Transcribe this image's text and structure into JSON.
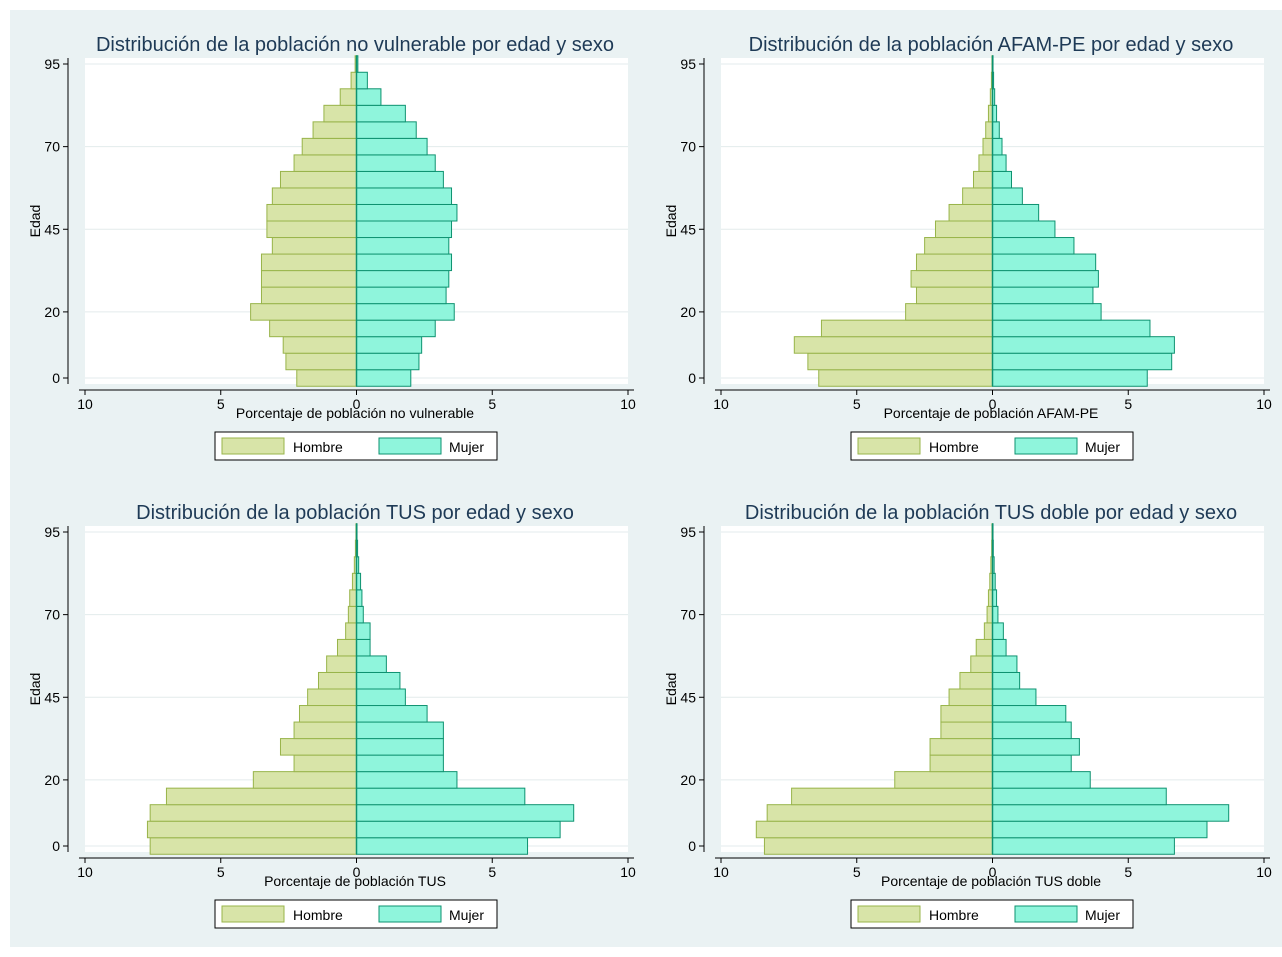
{
  "colors": {
    "hombre_fill": "#d8e4a8",
    "hombre_edge": "#98b44a",
    "mujer_fill": "#8ff5dc",
    "mujer_edge": "#0e9270",
    "background": "#eaf2f3",
    "title": "#1e3a56"
  },
  "legend": {
    "hombre": "Hombre",
    "mujer": "Mujer"
  },
  "chart_data": [
    {
      "type": "bar",
      "orientation": "horizontal-population-pyramid",
      "title": "Distribución de la población no vulnerable por edad y sexo",
      "xlabel": "Porcentaje de población no vulnerable",
      "ylabel": "Edad",
      "xticks": [
        "10",
        "5",
        "0",
        "5",
        "10"
      ],
      "yticks": [
        "0",
        "20",
        "45",
        "70",
        "95"
      ],
      "xlim": [
        -10,
        10
      ],
      "ylim": [
        0,
        95
      ],
      "age_groups": [
        0,
        5,
        10,
        15,
        20,
        25,
        30,
        35,
        40,
        45,
        50,
        55,
        60,
        65,
        70,
        75,
        80,
        85,
        90,
        95
      ],
      "series": [
        {
          "name": "Hombre",
          "values": [
            2.2,
            2.6,
            2.7,
            3.2,
            3.9,
            3.5,
            3.5,
            3.5,
            3.1,
            3.3,
            3.3,
            3.1,
            2.8,
            2.3,
            2.0,
            1.6,
            1.2,
            0.6,
            0.2,
            0.05
          ]
        },
        {
          "name": "Mujer",
          "values": [
            2.0,
            2.3,
            2.4,
            2.9,
            3.6,
            3.3,
            3.4,
            3.5,
            3.4,
            3.5,
            3.7,
            3.5,
            3.2,
            2.9,
            2.6,
            2.2,
            1.8,
            0.9,
            0.4,
            0.05
          ]
        }
      ]
    },
    {
      "type": "bar",
      "orientation": "horizontal-population-pyramid",
      "title": "Distribución de la población AFAM-PE por edad y sexo",
      "xlabel": "Porcentaje de población AFAM-PE",
      "ylabel": "Edad",
      "xticks": [
        "10",
        "5",
        "0",
        "5",
        "10"
      ],
      "yticks": [
        "0",
        "20",
        "45",
        "70",
        "95"
      ],
      "xlim": [
        -10,
        10
      ],
      "ylim": [
        0,
        95
      ],
      "age_groups": [
        0,
        5,
        10,
        15,
        20,
        25,
        30,
        35,
        40,
        45,
        50,
        55,
        60,
        65,
        70,
        75,
        80,
        85,
        90,
        95
      ],
      "series": [
        {
          "name": "Hombre",
          "values": [
            6.4,
            6.8,
            7.3,
            6.3,
            3.2,
            2.8,
            3.0,
            2.8,
            2.5,
            2.1,
            1.6,
            1.1,
            0.7,
            0.5,
            0.35,
            0.25,
            0.15,
            0.08,
            0.04,
            0.02
          ]
        },
        {
          "name": "Mujer",
          "values": [
            5.7,
            6.6,
            6.7,
            5.8,
            4.0,
            3.7,
            3.9,
            3.8,
            3.0,
            2.3,
            1.7,
            1.1,
            0.7,
            0.5,
            0.35,
            0.25,
            0.15,
            0.08,
            0.04,
            0.02
          ]
        }
      ]
    },
    {
      "type": "bar",
      "orientation": "horizontal-population-pyramid",
      "title": "Distribución de la población TUS por edad y sexo",
      "xlabel": "Porcentaje de población TUS",
      "ylabel": "Edad",
      "xticks": [
        "10",
        "5",
        "0",
        "5",
        "10"
      ],
      "yticks": [
        "0",
        "20",
        "45",
        "70",
        "95"
      ],
      "xlim": [
        -10,
        10
      ],
      "ylim": [
        0,
        95
      ],
      "age_groups": [
        0,
        5,
        10,
        15,
        20,
        25,
        30,
        35,
        40,
        45,
        50,
        55,
        60,
        65,
        70,
        75,
        80,
        85,
        90,
        95
      ],
      "series": [
        {
          "name": "Hombre",
          "values": [
            7.6,
            7.7,
            7.6,
            7.0,
            3.8,
            2.3,
            2.8,
            2.3,
            2.1,
            1.8,
            1.4,
            1.1,
            0.7,
            0.4,
            0.3,
            0.25,
            0.15,
            0.08,
            0.04,
            0.02
          ]
        },
        {
          "name": "Mujer",
          "values": [
            6.3,
            7.5,
            8.0,
            6.2,
            3.7,
            3.2,
            3.2,
            3.2,
            2.6,
            1.8,
            1.6,
            1.1,
            0.5,
            0.5,
            0.25,
            0.2,
            0.15,
            0.08,
            0.04,
            0.02
          ]
        }
      ]
    },
    {
      "type": "bar",
      "orientation": "horizontal-population-pyramid",
      "title": "Distribución de la población TUS doble por edad y sexo",
      "xlabel": "Porcentaje de población TUS doble",
      "ylabel": "Edad",
      "xticks": [
        "10",
        "5",
        "0",
        "5",
        "10"
      ],
      "yticks": [
        "0",
        "20",
        "45",
        "70",
        "95"
      ],
      "xlim": [
        -10,
        10
      ],
      "ylim": [
        0,
        95
      ],
      "age_groups": [
        0,
        5,
        10,
        15,
        20,
        25,
        30,
        35,
        40,
        45,
        50,
        55,
        60,
        65,
        70,
        75,
        80,
        85,
        90,
        95
      ],
      "series": [
        {
          "name": "Hombre",
          "values": [
            8.4,
            8.7,
            8.3,
            7.4,
            3.6,
            2.3,
            2.3,
            1.9,
            1.9,
            1.6,
            1.2,
            0.8,
            0.6,
            0.3,
            0.2,
            0.15,
            0.1,
            0.06,
            0.03,
            0.02
          ]
        },
        {
          "name": "Mujer",
          "values": [
            6.7,
            7.9,
            8.7,
            6.4,
            3.6,
            2.9,
            3.2,
            2.9,
            2.7,
            1.6,
            1.0,
            0.9,
            0.5,
            0.4,
            0.2,
            0.15,
            0.1,
            0.06,
            0.03,
            0.02
          ]
        }
      ]
    }
  ]
}
